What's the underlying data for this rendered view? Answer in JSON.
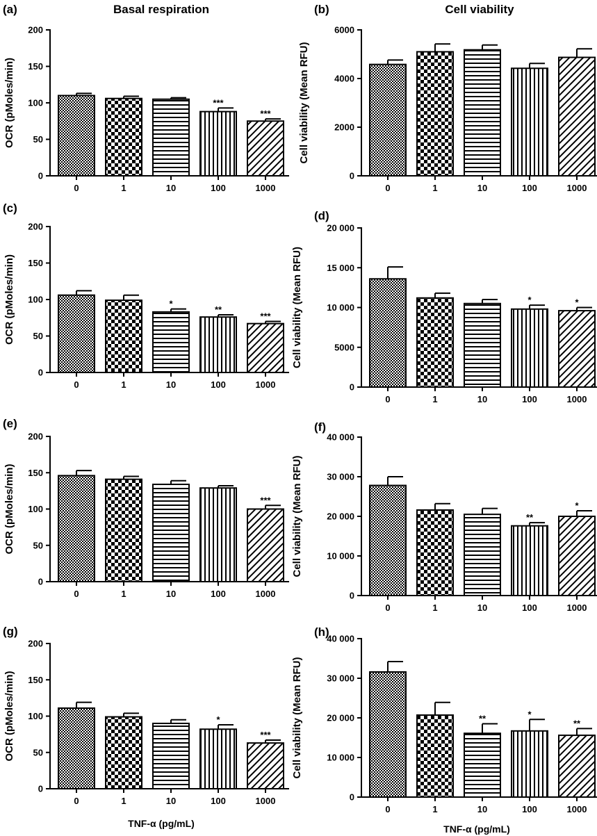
{
  "figure": {
    "col_titles": [
      "Basal respiration",
      "Cell viability"
    ],
    "x_title": "TNF-α (pg/mL)"
  },
  "chart_data": [
    {
      "panel": "(a)",
      "type": "bar",
      "categories": [
        "0",
        "1",
        "10",
        "100",
        "1000"
      ],
      "values": [
        110,
        106,
        105,
        88,
        75
      ],
      "errors": [
        3,
        3,
        2,
        5,
        3
      ],
      "significance": [
        "",
        "",
        "",
        "***",
        "***"
      ],
      "ylabel": "OCR (pMoles/min)",
      "ylim": [
        0,
        200
      ],
      "yticks": [
        "0",
        "50",
        "100",
        "150",
        "200"
      ]
    },
    {
      "panel": "(b)",
      "type": "bar",
      "categories": [
        "0",
        "1",
        "10",
        "100",
        "1000"
      ],
      "values": [
        4580,
        5100,
        5180,
        4420,
        4870
      ],
      "errors": [
        180,
        320,
        200,
        200,
        350
      ],
      "significance": [
        "",
        "",
        "",
        "",
        ""
      ],
      "ylabel": "Cell viability (Mean RFU)",
      "ylim": [
        0,
        6000
      ],
      "yticks": [
        "0",
        "2000",
        "4000",
        "6000"
      ]
    },
    {
      "panel": "(c)",
      "type": "bar",
      "categories": [
        "0",
        "1",
        "10",
        "100",
        "1000"
      ],
      "values": [
        106,
        99,
        83,
        76,
        67
      ],
      "errors": [
        6,
        7,
        4,
        3,
        3
      ],
      "significance": [
        "",
        "",
        "*",
        "**",
        "***"
      ],
      "ylabel": "OCR (pMoles/min)",
      "ylim": [
        0,
        200
      ],
      "yticks": [
        "0",
        "50",
        "100",
        "150",
        "200"
      ]
    },
    {
      "panel": "(d)",
      "type": "bar",
      "categories": [
        "0",
        "1",
        "10",
        "100",
        "1000"
      ],
      "values": [
        13600,
        11200,
        10500,
        9800,
        9600
      ],
      "errors": [
        1500,
        600,
        500,
        500,
        400
      ],
      "significance": [
        "",
        "",
        "",
        "*",
        "*"
      ],
      "ylabel": "Cell viability (Mean RFU)",
      "ylim": [
        0,
        20000
      ],
      "yticks": [
        "0",
        "5000",
        "10 000",
        "15 000",
        "20 000"
      ]
    },
    {
      "panel": "(e)",
      "type": "bar",
      "categories": [
        "0",
        "1",
        "10",
        "100",
        "1000"
      ],
      "values": [
        146,
        141,
        134,
        129,
        100
      ],
      "errors": [
        7,
        4,
        5,
        3,
        5
      ],
      "significance": [
        "",
        "",
        "",
        "",
        "***"
      ],
      "ylabel": "OCR (pMoles/min)",
      "ylim": [
        0,
        200
      ],
      "yticks": [
        "0",
        "50",
        "100",
        "150",
        "200"
      ]
    },
    {
      "panel": "(f)",
      "type": "bar",
      "categories": [
        "0",
        "1",
        "10",
        "100",
        "1000"
      ],
      "values": [
        27800,
        21600,
        20500,
        17600,
        20000
      ],
      "errors": [
        2200,
        1600,
        1500,
        800,
        1400
      ],
      "significance": [
        "",
        "",
        "",
        "**",
        "*"
      ],
      "ylabel": "Cell viability (Mean RFU)",
      "ylim": [
        0,
        40000
      ],
      "yticks": [
        "0",
        "10 000",
        "20 000",
        "30 000",
        "40 000"
      ]
    },
    {
      "panel": "(g)",
      "type": "bar",
      "categories": [
        "0",
        "1",
        "10",
        "100",
        "1000"
      ],
      "values": [
        111,
        99,
        90,
        82,
        63
      ],
      "errors": [
        8,
        5,
        5,
        6,
        4
      ],
      "significance": [
        "",
        "",
        "",
        "*",
        "***"
      ],
      "ylabel": "OCR (pMoles/min)",
      "ylim": [
        0,
        200
      ],
      "yticks": [
        "0",
        "50",
        "100",
        "150",
        "200"
      ]
    },
    {
      "panel": "(h)",
      "type": "bar",
      "categories": [
        "0",
        "1",
        "10",
        "100",
        "1000"
      ],
      "values": [
        31600,
        20700,
        16100,
        16700,
        15600
      ],
      "errors": [
        2600,
        3200,
        2400,
        2900,
        1700
      ],
      "significance": [
        "",
        "",
        "**",
        "*",
        "**"
      ],
      "ylabel": "Cell viability (Mean RFU)",
      "ylim": [
        0,
        40000
      ],
      "yticks": [
        "0",
        "10 000",
        "20 000",
        "30 000",
        "40 000"
      ]
    }
  ]
}
